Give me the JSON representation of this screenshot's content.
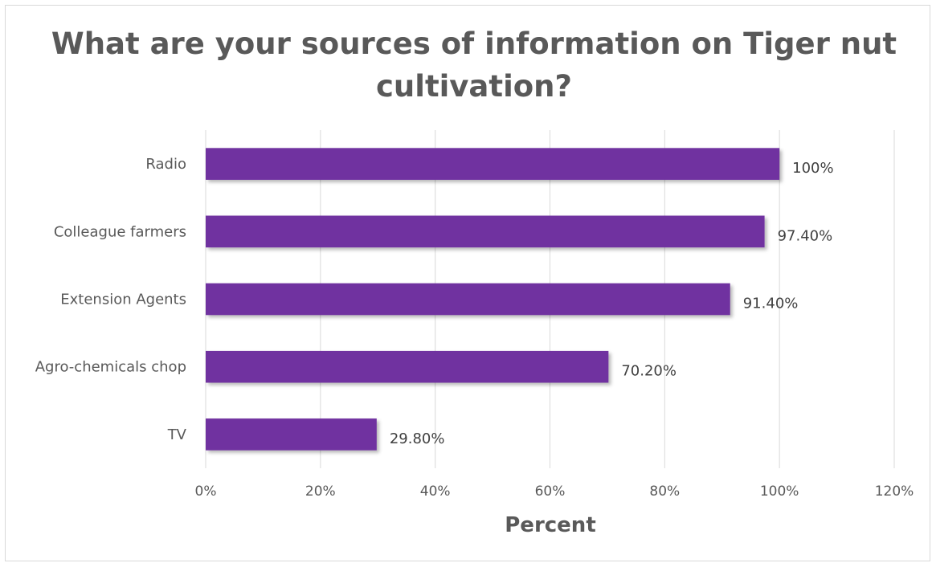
{
  "chart_data": {
    "type": "bar",
    "orientation": "horizontal",
    "title_lines": [
      "What are your sources of information on Tiger nut",
      "cultivation?"
    ],
    "categories": [
      "Radio",
      "Colleague farmers",
      "Extension Agents",
      "Agro-chemicals chop",
      "TV"
    ],
    "values": [
      100,
      97.4,
      91.4,
      70.2,
      29.8
    ],
    "data_labels": [
      "100%",
      "97.40%",
      "91.40%",
      "70.20%",
      "29.80%"
    ],
    "xlabel": "Percent",
    "xlim": [
      0,
      120
    ],
    "xticks": [
      0,
      20,
      40,
      60,
      80,
      100,
      120
    ],
    "xtick_labels": [
      "0%",
      "20%",
      "40%",
      "60%",
      "80%",
      "100%",
      "120%"
    ],
    "grid": true,
    "legend": "none",
    "bar_color": "#7030A0"
  }
}
